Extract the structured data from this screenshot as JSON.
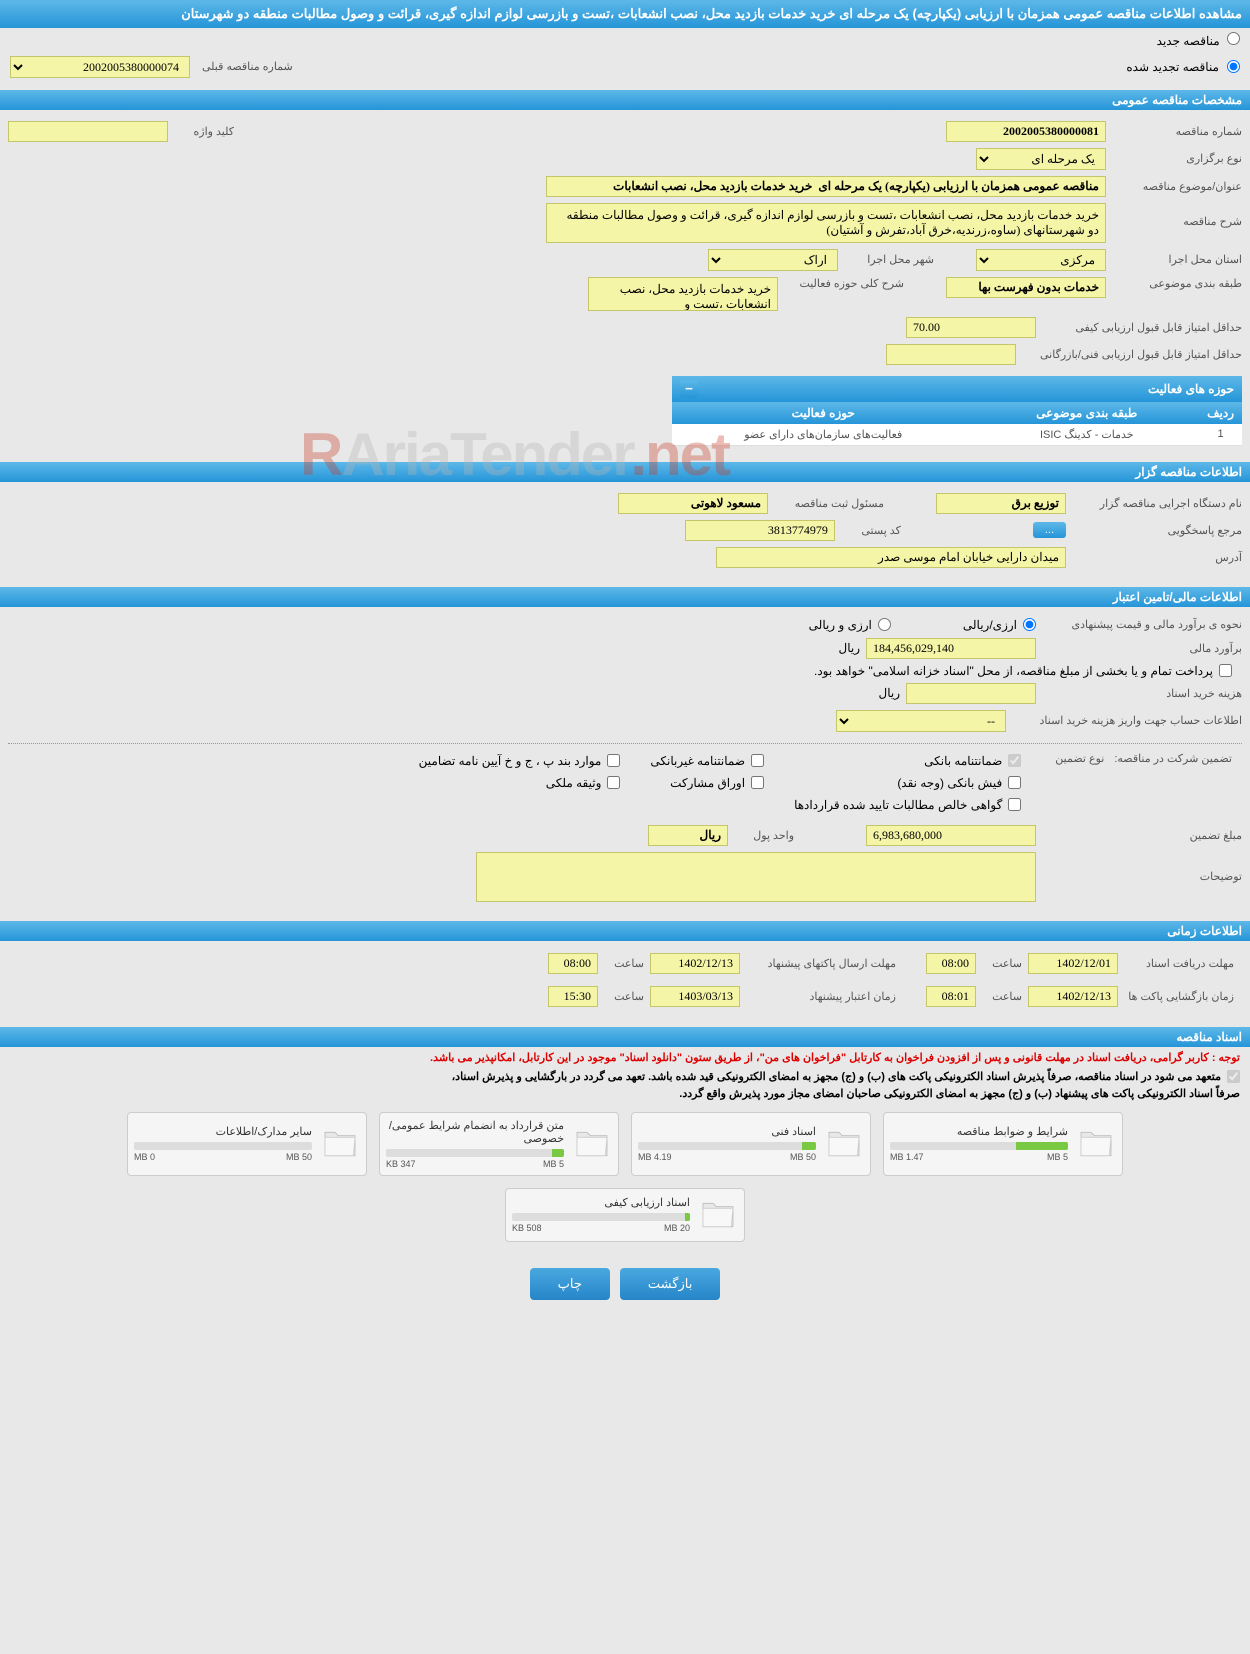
{
  "header": {
    "title": "مشاهده اطلاعات مناقصه عمومی همزمان با ارزیابی (یکپارچه) یک مرحله ای خرید خدمات بازدید محل، نصب انشعابات ،تست و بازرسی لوازم اندازه گیری، قرائت و وصول مطالبات منطقه دو شهرستان"
  },
  "radios": {
    "new": "مناقصه جدید",
    "renewed": "مناقصه تجدید شده",
    "prev_label": "شماره مناقصه قبلی",
    "prev_value": "2002005380000074"
  },
  "sections": {
    "general": "مشخصات مناقصه عمومی",
    "holder": "اطلاعات مناقصه گزار",
    "financial": "اطلاعات مالی/تامین اعتبار",
    "timing": "اطلاعات زمانی",
    "docs": "اسناد مناقصه"
  },
  "general": {
    "tender_no_label": "شماره مناقصه",
    "tender_no": "2002005380000081",
    "keyword_label": "کلید واژه",
    "keyword": "",
    "type_label": "نوع برگزاری",
    "type": "یک مرحله ای",
    "subject_label": "عنوان/موضوع مناقصه",
    "subject": "مناقصه عمومی همزمان با ارزیابی (یکپارچه) یک مرحله ای  خرید خدمات بازدید محل، نصب انشعابات",
    "desc_label": "شرح مناقصه",
    "desc": "خرید خدمات بازدید محل، نصب انشعابات ،تست و بازرسی لوازم اندازه گیری، قرائت و وصول مطالبات منطقه دو شهرستانهای (ساوه،زرندیه،خرق آباد،تفرش و آشتیان)",
    "province_label": "استان محل اجرا",
    "province": "مرکزی",
    "city_label": "شهر محل اجرا",
    "city": "اراک",
    "category_label": "طبقه بندی موضوعی",
    "category": "خدمات بدون فهرست بها",
    "scope_desc_label": "شرح کلی حوزه فعالیت",
    "scope_desc": "خرید خدمات بازدید محل، نصب انشعابات ،تست و",
    "min_quality_label": "حداقل امتیاز قابل قبول ارزیابی کیفی",
    "min_quality": "70.00",
    "min_tech_label": "حداقل امتیاز قابل قبول ارزیابی فنی/بازرگانی",
    "min_tech": ""
  },
  "activity": {
    "title": "حوزه های فعالیت",
    "col_row": "ردیف",
    "col_category": "طبقه بندی موضوعی",
    "col_scope": "حوزه فعالیت",
    "rows": [
      {
        "n": "1",
        "cat": "خدمات - کدینگ ISIC",
        "scope": "فعالیت‌های سازمان‌های دارای عضو"
      }
    ]
  },
  "holder": {
    "agency_label": "نام دستگاه اجرایی مناقصه گزار",
    "agency": "توزیع برق",
    "responsible_label": "مسئول ثبت مناقصه",
    "responsible": "مسعود لاهوتی",
    "response_ref_label": "مرجع پاسخگویی",
    "response_ref_btn": "...",
    "postal_label": "کد پستی",
    "postal": "3813774979",
    "address_label": "آدرس",
    "address": "میدان دارایی خیابان امام موسی صدر"
  },
  "financial": {
    "method_label": "نحوه ی برآورد مالی و قیمت پیشنهادی",
    "radio_rial": "ارزی/ریالی",
    "radio_currency": "ارزی و ریالی",
    "estimate_label": "برآورد مالی",
    "estimate": "184,456,029,140",
    "currency": "ریال",
    "payment_note": "پرداخت تمام و یا بخشی از مبلغ مناقصه، از محل \"اسناد خزانه اسلامی\" خواهد بود.",
    "doc_cost_label": "هزینه خرید اسناد",
    "doc_cost": "",
    "account_label": "اطلاعات حساب جهت واریز هزینه خرید اسناد",
    "account": "--"
  },
  "guarantee": {
    "type_label": "تضمین شرکت در مناقصه:",
    "type_sub": "نوع تضمین",
    "bank": "ضمانتنامه بانکی",
    "nonbank": "ضمانتنامه غیربانکی",
    "appendix": "موارد بند پ ، ج و خ آیین نامه تضامین",
    "cash": "فیش بانکی (وجه نقد)",
    "bonds": "اوراق مشارکت",
    "deed": "وثیقه ملکی",
    "cert": "گواهی خالص مطالبات تایید شده قراردادها",
    "amount_label": "مبلغ تضمین",
    "amount": "6,983,680,000",
    "unit_label": "واحد پول",
    "unit": "ریال",
    "notes_label": "توضیحات",
    "notes": ""
  },
  "timing": {
    "receive_deadline_label": "مهلت دریافت اسناد",
    "receive_deadline_date": "1402/12/01",
    "time_label": "ساعت",
    "receive_deadline_time": "08:00",
    "send_deadline_label": "مهلت ارسال پاکتهای پیشنهاد",
    "send_deadline_date": "1402/12/13",
    "send_deadline_time": "08:00",
    "opening_label": "زمان بازگشایی پاکت ها",
    "opening_date": "1402/12/13",
    "opening_time": "08:01",
    "validity_label": "زمان اعتبار پیشنهاد",
    "validity_date": "1403/03/13",
    "validity_time": "15:30"
  },
  "notices": {
    "red": "توجه : کاربر گرامی، دریافت اسناد در مهلت قانونی و پس از افزودن فراخوان به کارتابل \"فراخوان های من\"، از طریق ستون \"دانلود اسناد\" موجود در این کارتابل، امکانپذیر می باشد.",
    "commit1": "متعهد می شود در اسناد مناقصه، صرفاً پذیرش اسناد الکترونیکی پاکت های (ب) و (ج) مجهز به امضای الکترونیکی قید شده باشد. تعهد می گردد در بارگشایی و پذیرش اسناد،",
    "commit2": "صرفاً اسناد الکترونیکی پاکت های پیشنهاد (ب) و (ج) مجهز به امضای الکترونیکی صاحبان امضای مجاز مورد پذیرش واقع گردد."
  },
  "docs": [
    {
      "title": "شرایط و ضوابط مناقصه",
      "used": "1.47 MB",
      "total": "5 MB",
      "pct": 29
    },
    {
      "title": "اسناد فنی",
      "used": "4.19 MB",
      "total": "50 MB",
      "pct": 8
    },
    {
      "title": "متن قرارداد به انضمام شرایط عمومی/خصوصی",
      "used": "347 KB",
      "total": "5 MB",
      "pct": 7
    },
    {
      "title": "سایر مدارک/اطلاعات",
      "used": "0 MB",
      "total": "50 MB",
      "pct": 0
    },
    {
      "title": "اسناد ارزیابی کیفی",
      "used": "508 KB",
      "total": "20 MB",
      "pct": 3
    }
  ],
  "footer": {
    "back": "بازگشت",
    "print": "چاپ"
  },
  "watermark": {
    "t1": "AriaTender",
    "t2": ".net"
  },
  "colors": {
    "yellow": "#f5f5a8",
    "blue_top": "#5db8e8",
    "blue_bot": "#2595d8",
    "bg": "#e8e8e8",
    "green": "#7ac943"
  }
}
